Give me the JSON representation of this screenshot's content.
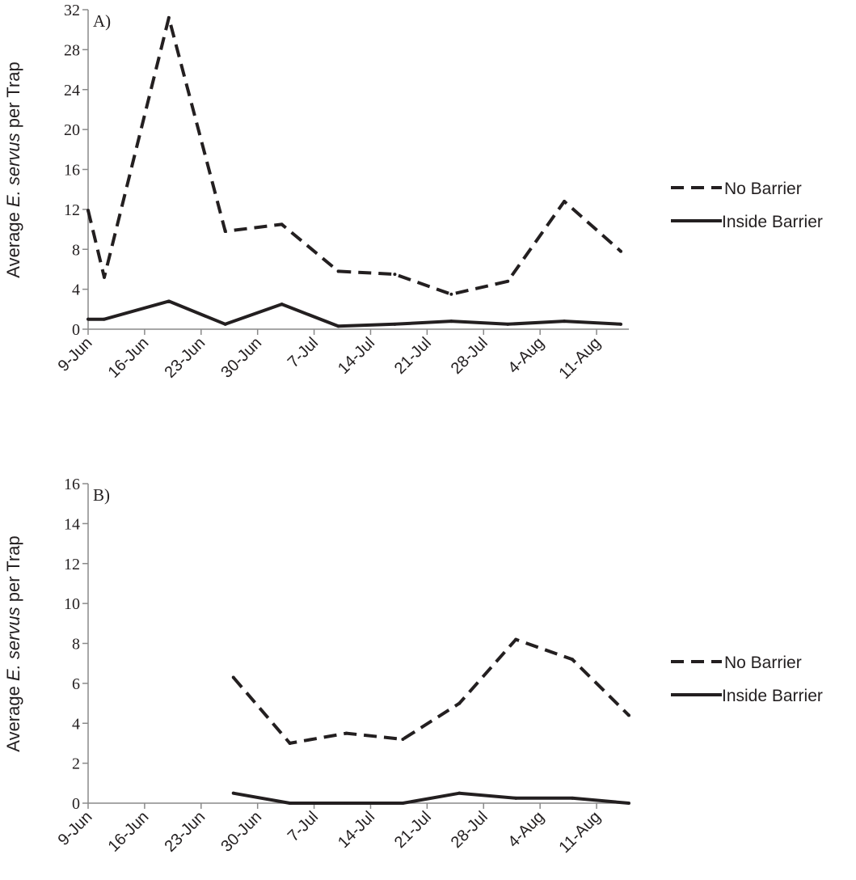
{
  "chart_data": [
    {
      "type": "line",
      "panel_label": "A)",
      "ylabel_prefix": "Average ",
      "ylabel_italic": "E. servus",
      "ylabel_suffix": " per Trap",
      "ylim": [
        0,
        32
      ],
      "yticks": [
        0,
        4,
        8,
        12,
        16,
        20,
        24,
        28,
        32
      ],
      "x_tick_labels": [
        "9-Jun",
        "16-Jun",
        "23-Jun",
        "30-Jun",
        "7-Jul",
        "14-Jul",
        "21-Jul",
        "28-Jul",
        "4-Aug",
        "11-Aug"
      ],
      "xlim": [
        "2011-06-09",
        "2011-08-15"
      ],
      "legend_position": "right",
      "series": [
        {
          "name": "No Barrier",
          "style": "dashed",
          "color": "#231f20",
          "points": [
            [
              "2011-06-09",
              11.9
            ],
            [
              "2011-06-11",
              5.2
            ],
            [
              "2011-06-19",
              31.2
            ],
            [
              "2011-06-26",
              9.8
            ],
            [
              "2011-07-03",
              10.5
            ],
            [
              "2011-07-10",
              5.8
            ],
            [
              "2011-07-17",
              5.5
            ],
            [
              "2011-07-24",
              3.5
            ],
            [
              "2011-07-31",
              4.8
            ],
            [
              "2011-08-07",
              12.8
            ],
            [
              "2011-08-14",
              7.8
            ]
          ]
        },
        {
          "name": "Inside Barrier",
          "style": "solid",
          "color": "#231f20",
          "points": [
            [
              "2011-06-09",
              1.0
            ],
            [
              "2011-06-11",
              1.0
            ],
            [
              "2011-06-19",
              2.8
            ],
            [
              "2011-06-26",
              0.5
            ],
            [
              "2011-07-03",
              2.5
            ],
            [
              "2011-07-10",
              0.3
            ],
            [
              "2011-07-17",
              0.5
            ],
            [
              "2011-07-24",
              0.8
            ],
            [
              "2011-07-31",
              0.5
            ],
            [
              "2011-08-07",
              0.8
            ],
            [
              "2011-08-14",
              0.5
            ]
          ]
        }
      ]
    },
    {
      "type": "line",
      "panel_label": "B)",
      "ylabel_prefix": "Average ",
      "ylabel_italic": "E. servus",
      "ylabel_suffix": " per Trap",
      "ylim": [
        0,
        16
      ],
      "yticks": [
        0,
        2,
        4,
        6,
        8,
        10,
        12,
        14,
        16
      ],
      "x_tick_labels": [
        "9-Jun",
        "16-Jun",
        "23-Jun",
        "30-Jun",
        "7-Jul",
        "14-Jul",
        "21-Jul",
        "28-Jul",
        "4-Aug",
        "11-Aug"
      ],
      "xlim": [
        "2011-06-09",
        "2011-08-15"
      ],
      "legend_position": "right",
      "series": [
        {
          "name": "No Barrier",
          "style": "dashed",
          "color": "#231f20",
          "points": [
            [
              "2011-06-27",
              6.3
            ],
            [
              "2011-07-04",
              3.0
            ],
            [
              "2011-07-11",
              3.5
            ],
            [
              "2011-07-18",
              3.2
            ],
            [
              "2011-07-25",
              5.0
            ],
            [
              "2011-08-01",
              8.2
            ],
            [
              "2011-08-08",
              7.2
            ],
            [
              "2011-08-15",
              4.4
            ]
          ]
        },
        {
          "name": "Inside Barrier",
          "style": "solid",
          "color": "#231f20",
          "points": [
            [
              "2011-06-27",
              0.5
            ],
            [
              "2011-07-04",
              0.0
            ],
            [
              "2011-07-11",
              0.0
            ],
            [
              "2011-07-18",
              0.0
            ],
            [
              "2011-07-25",
              0.5
            ],
            [
              "2011-08-01",
              0.25
            ],
            [
              "2011-08-08",
              0.25
            ],
            [
              "2011-08-15",
              0.0
            ]
          ]
        }
      ]
    }
  ]
}
